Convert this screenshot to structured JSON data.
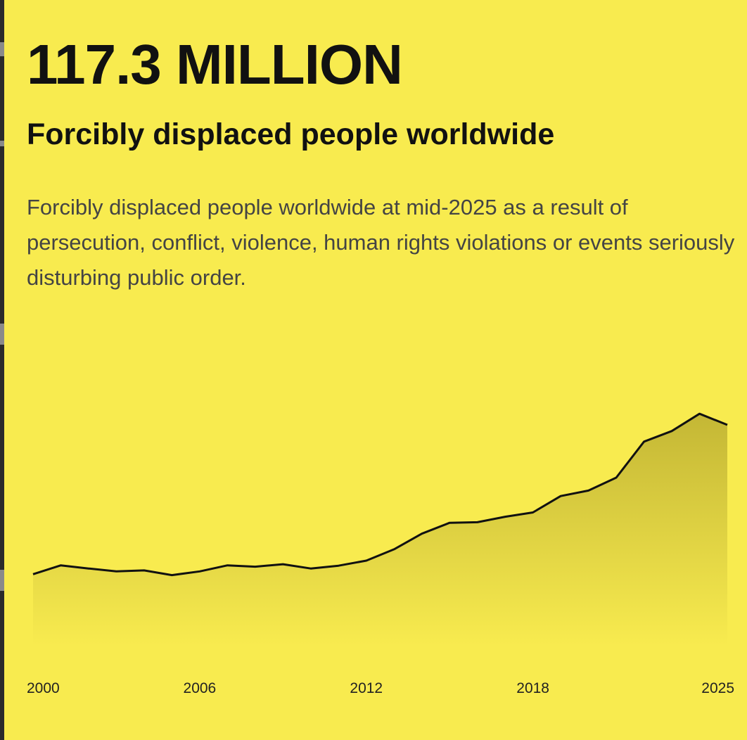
{
  "headline": {
    "value": "117.3 MILLION",
    "subtitle": "Forcibly displaced people worldwide",
    "description": "Forcibly displaced people worldwide at mid-2025 as a result of persecution, conflict, violence, human rights violations or events seriously disturbing public order."
  },
  "colors": {
    "background": "#f8eb4f",
    "line": "#111111",
    "area_top": "#c4b735",
    "area_bottom": "#f8eb4f"
  },
  "chart_data": {
    "type": "area",
    "title": "",
    "xlabel": "",
    "ylabel": "",
    "x": [
      2000,
      2001,
      2002,
      2003,
      2004,
      2005,
      2006,
      2007,
      2008,
      2009,
      2010,
      2011,
      2012,
      2013,
      2014,
      2015,
      2016,
      2017,
      2018,
      2019,
      2020,
      2021,
      2022,
      2023,
      2024,
      2025
    ],
    "series": [
      {
        "values": [
          38,
          42.7,
          41,
          39.5,
          40,
          37.5,
          39.5,
          42.7,
          42,
          43.3,
          41,
          42.5,
          45.2,
          51.2,
          59.5,
          65.3,
          65.6,
          68.5,
          70.8,
          79.5,
          82.4,
          89.3,
          108.4,
          114,
          123.2,
          117.3
        ]
      }
    ],
    "xticks": [
      "2000",
      "2006",
      "2012",
      "2018",
      "2025"
    ],
    "xlim": [
      2000,
      2025
    ],
    "ylim": [
      0,
      130
    ],
    "grid": false,
    "legend": "none"
  }
}
